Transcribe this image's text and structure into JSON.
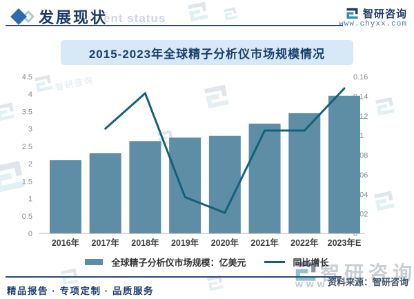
{
  "header": {
    "title": "发展现状",
    "watermark_text": "ent status",
    "brand_name": "智研咨询",
    "brand_url": "www.chyxx.com"
  },
  "chart_data": {
    "type": "bar",
    "title": "2015-2023年全球精子分析仪市场规模情况",
    "categories": [
      "2016年",
      "2017年",
      "2018年",
      "2019年",
      "2020年",
      "2021年",
      "2022年",
      "2023年E"
    ],
    "series": [
      {
        "name": "全球精子分析仪市场规模：亿美元",
        "type": "bar",
        "axis": "left",
        "color": "#5e8da6",
        "values": [
          2.1,
          2.3,
          2.65,
          2.75,
          2.8,
          3.15,
          3.45,
          3.95
        ]
      },
      {
        "name": "同比增长",
        "type": "line",
        "axis": "right",
        "color": "#14607a",
        "values": [
          null,
          0.107,
          0.143,
          0.037,
          0.021,
          0.105,
          0.105,
          0.148
        ]
      }
    ],
    "left_axis": {
      "min": 0,
      "max": 4.5,
      "step": 0.5
    },
    "right_axis": {
      "min": 0,
      "max": 0.16,
      "step": 0.02
    },
    "grid": false,
    "legend_position": "bottom"
  },
  "legend": {
    "bar_label": "全球精子分析仪市场规模：亿美元",
    "line_label": "同比增长"
  },
  "footer": {
    "source": "资料来源：智研咨询",
    "tagline": "精品报告 · 专项定制 · 品质服务",
    "watermark_brand": "智研咨询",
    "watermark_www": "www."
  },
  "colors": {
    "bar": "#5e8da6",
    "line": "#14607a",
    "banner_bg": "#d7e8f6",
    "navy_text": "#17406b",
    "axis_text": "#8a8a8a"
  }
}
